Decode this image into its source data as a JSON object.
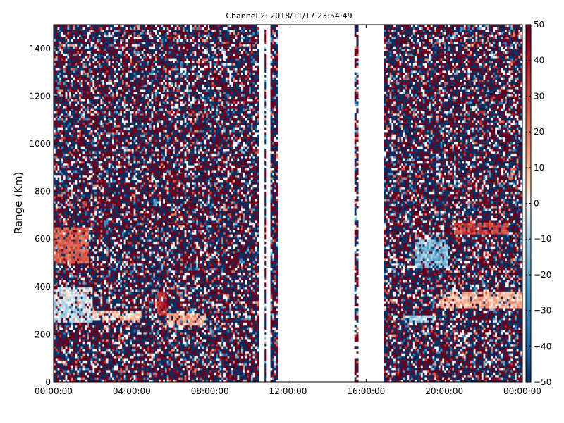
{
  "chart_data": {
    "type": "heatmap",
    "title": "Channel 2: 2018/11/17 23:54:49",
    "xlabel": "",
    "ylabel": "Range (Km)",
    "x_ticks": [
      "00:00:00",
      "04:00:00",
      "08:00:00",
      "12:00:00",
      "16:00:00",
      "20:00:00",
      "00:00:00"
    ],
    "x_range_hours": [
      0,
      24
    ],
    "y_ticks": [
      "0",
      "200",
      "400",
      "600",
      "800",
      "1000",
      "1200",
      "1400"
    ],
    "ylim": [
      0,
      1500
    ],
    "colorbar": {
      "ticks": [
        "50",
        "40",
        "30",
        "20",
        "10",
        "0",
        "−10",
        "−20",
        "−30",
        "−40",
        "−50"
      ],
      "range": [
        -50,
        50
      ],
      "colormap": "RdBu_r",
      "low_color": "#053061",
      "high_color": "#67001f"
    },
    "grid": false,
    "data_gaps_hours": [
      [
        10.55,
        10.8
      ],
      [
        10.95,
        11.1
      ],
      [
        11.55,
        15.45
      ],
      [
        15.65,
        16.9
      ]
    ],
    "features": [
      {
        "t_start": 0.0,
        "t_end": 2.0,
        "r_low": 250,
        "r_high": 400,
        "value": -5
      },
      {
        "t_start": 2.0,
        "t_end": 4.5,
        "r_low": 260,
        "r_high": 300,
        "value": 5
      },
      {
        "t_start": 0.0,
        "t_end": 1.8,
        "r_low": 500,
        "r_high": 650,
        "value": 25
      },
      {
        "t_start": 5.3,
        "t_end": 5.8,
        "r_low": 280,
        "r_high": 380,
        "value": 35
      },
      {
        "t_start": 5.8,
        "t_end": 7.8,
        "r_low": 245,
        "r_high": 285,
        "value": 10
      },
      {
        "t_start": 18.0,
        "t_end": 19.5,
        "r_low": 250,
        "r_high": 280,
        "value": -10
      },
      {
        "t_start": 19.8,
        "t_end": 24.0,
        "r_low": 310,
        "r_high": 380,
        "value": 10
      },
      {
        "t_start": 18.5,
        "t_end": 20.2,
        "r_low": 480,
        "r_high": 600,
        "value": -15
      },
      {
        "t_start": 20.5,
        "t_end": 23.3,
        "r_low": 620,
        "r_high": 670,
        "value": 30
      }
    ]
  }
}
